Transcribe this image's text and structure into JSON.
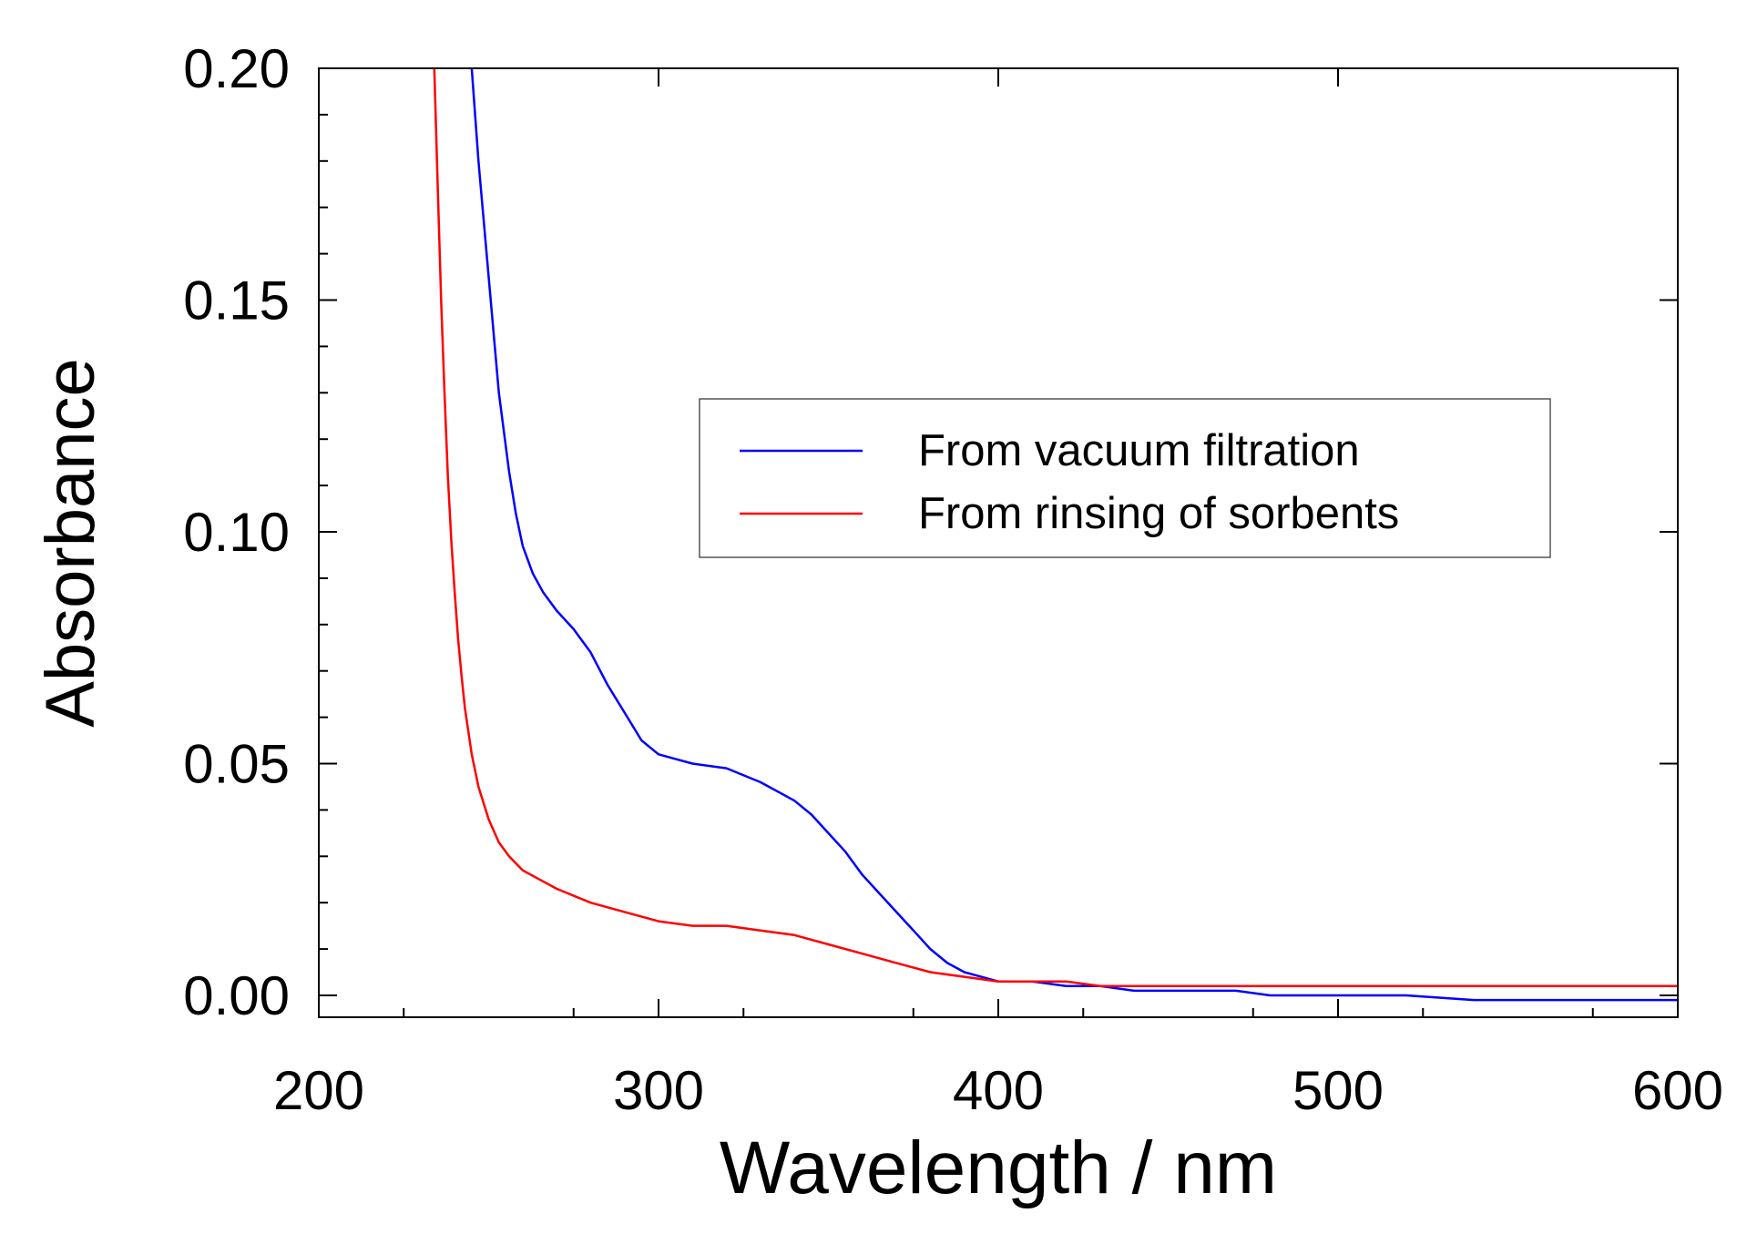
{
  "chart_data": {
    "type": "line",
    "title": "",
    "xlabel": "Wavelength / nm",
    "ylabel": "Absorbance",
    "xlim": [
      200,
      600
    ],
    "ylim": [
      0.0,
      0.2
    ],
    "grid": false,
    "legend_position": "center-right",
    "x_ticks": [
      200,
      300,
      400,
      500,
      600
    ],
    "x_tick_labels": [
      "200",
      "300",
      "400",
      "500",
      "600"
    ],
    "y_ticks": [
      0.0,
      0.05,
      0.1,
      0.15,
      0.2
    ],
    "y_tick_labels": [
      "0.00",
      "0.05",
      "0.10",
      "0.15",
      "0.20"
    ],
    "series": [
      {
        "name": "From vacuum filtration",
        "color": "#0000ff",
        "x": [
          245,
          247,
          250,
          253,
          256,
          258,
          260,
          263,
          266,
          270,
          275,
          280,
          285,
          290,
          295,
          300,
          305,
          310,
          320,
          330,
          340,
          345,
          350,
          355,
          360,
          365,
          370,
          375,
          380,
          385,
          390,
          395,
          400,
          405,
          410,
          420,
          430,
          440,
          450,
          460,
          470,
          480,
          500,
          520,
          540,
          550,
          560,
          580,
          600
        ],
        "values": [
          0.2,
          0.18,
          0.155,
          0.13,
          0.113,
          0.104,
          0.097,
          0.091,
          0.087,
          0.083,
          0.079,
          0.074,
          0.067,
          0.061,
          0.055,
          0.052,
          0.051,
          0.05,
          0.049,
          0.046,
          0.042,
          0.039,
          0.035,
          0.031,
          0.026,
          0.022,
          0.018,
          0.014,
          0.01,
          0.007,
          0.005,
          0.004,
          0.003,
          0.003,
          0.003,
          0.002,
          0.002,
          0.001,
          0.001,
          0.001,
          0.001,
          0.0,
          0.0,
          0.0,
          -0.001,
          -0.001,
          -0.001,
          -0.001,
          -0.001
        ]
      },
      {
        "name": "From rinsing of sorbents",
        "color": "#ff0000",
        "x": [
          234,
          235,
          236,
          237,
          238,
          239,
          240,
          241,
          242,
          243,
          245,
          247,
          250,
          253,
          256,
          260,
          265,
          270,
          280,
          290,
          300,
          310,
          320,
          330,
          340,
          345,
          350,
          360,
          370,
          380,
          390,
          400,
          410,
          420,
          430,
          450,
          500,
          550,
          600
        ],
        "values": [
          0.2,
          0.175,
          0.15,
          0.13,
          0.112,
          0.098,
          0.087,
          0.077,
          0.069,
          0.062,
          0.052,
          0.045,
          0.038,
          0.033,
          0.03,
          0.027,
          0.025,
          0.023,
          0.02,
          0.018,
          0.016,
          0.015,
          0.015,
          0.014,
          0.013,
          0.012,
          0.011,
          0.009,
          0.007,
          0.005,
          0.004,
          0.003,
          0.003,
          0.003,
          0.002,
          0.002,
          0.002,
          0.002,
          0.002
        ]
      }
    ]
  }
}
